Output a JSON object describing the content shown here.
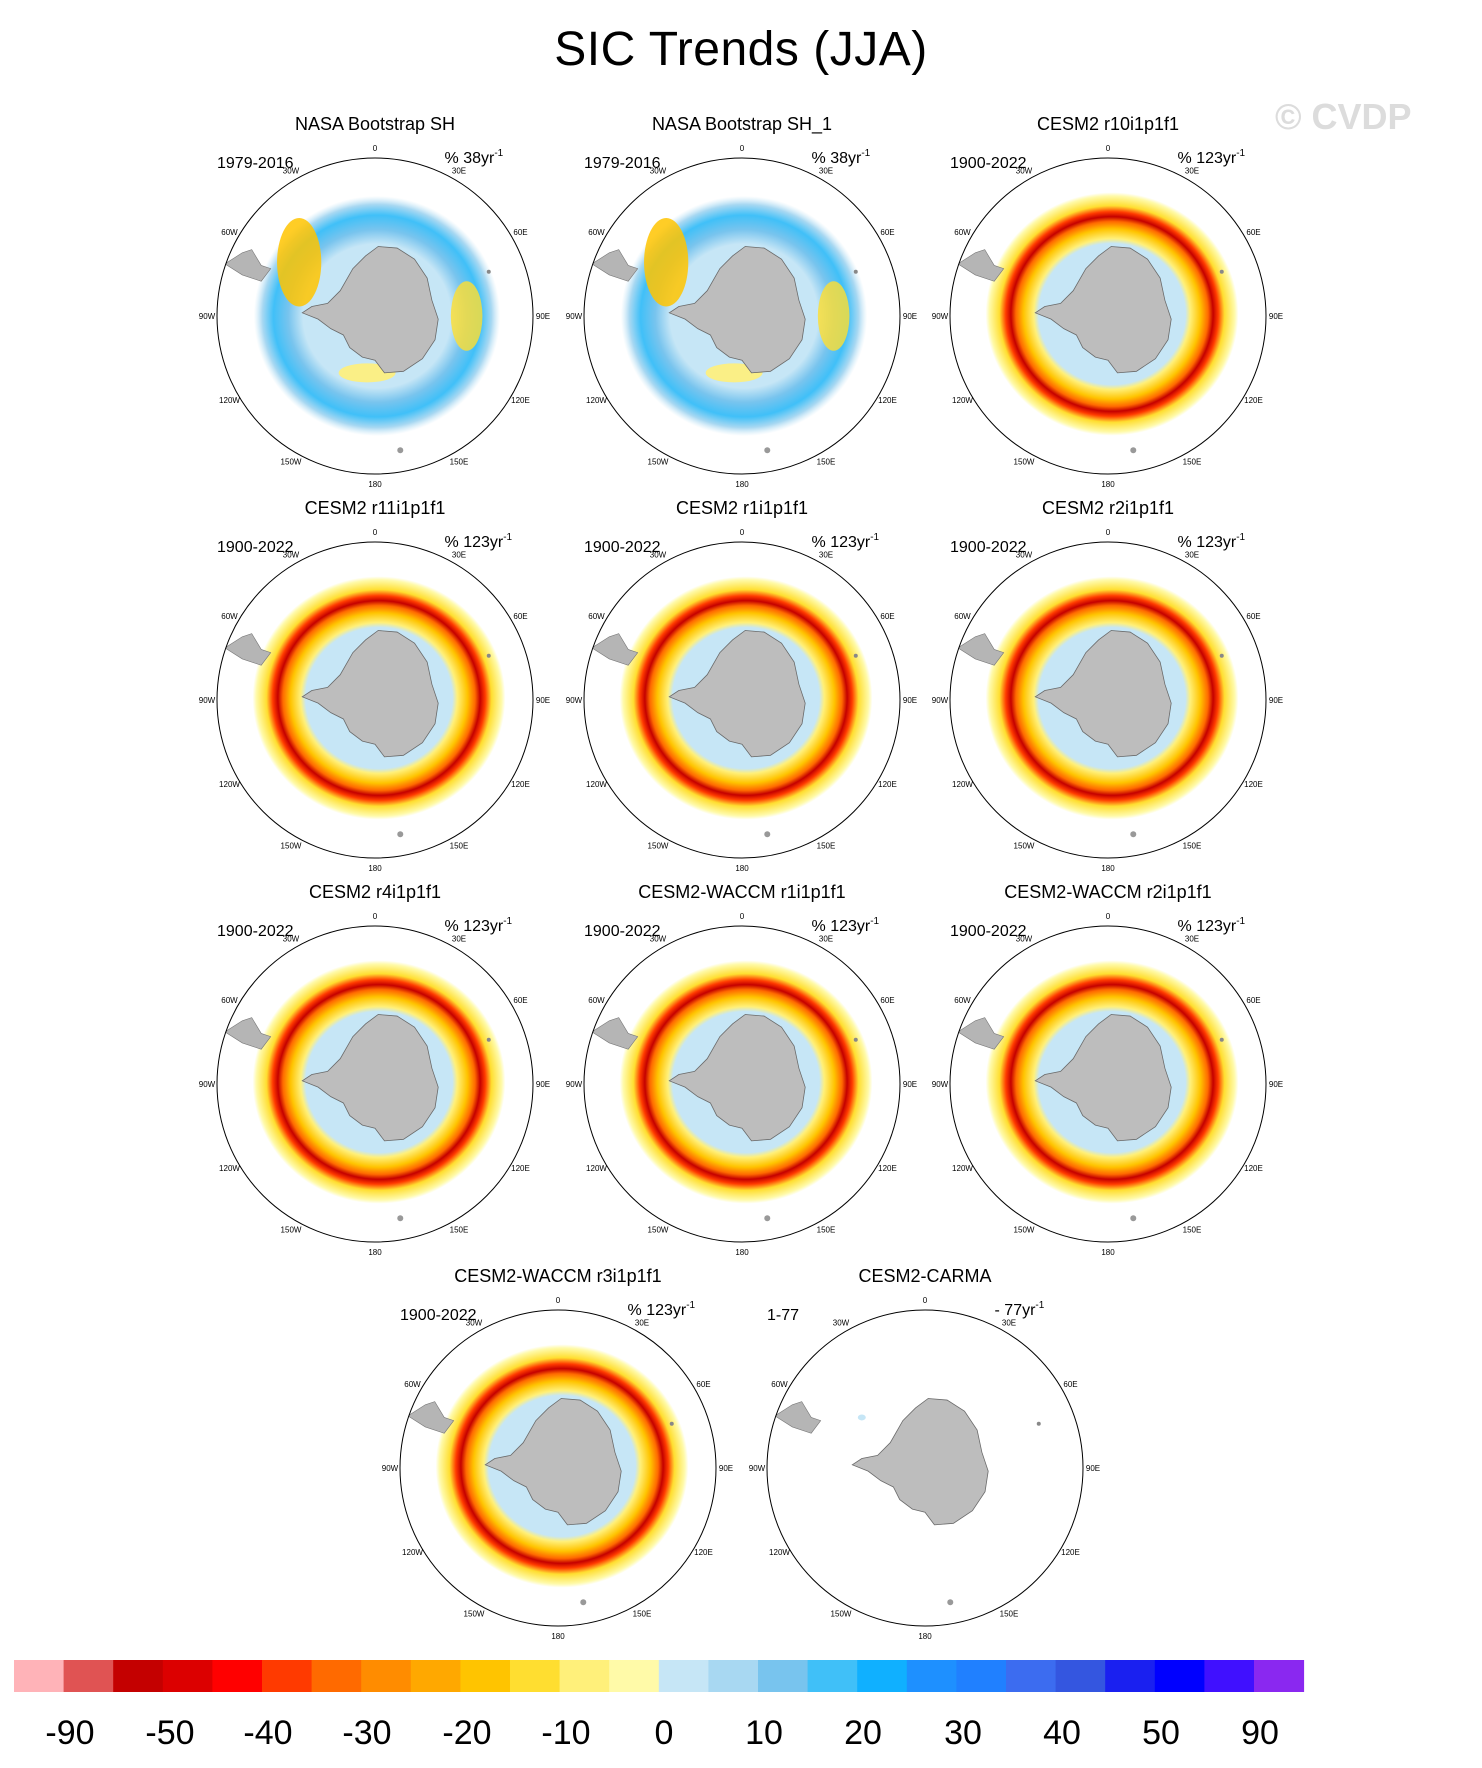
{
  "title": "SIC Trends (JJA)",
  "watermark": "© CVDP",
  "lon_labels": [
    "0",
    "30E",
    "60E",
    "90E",
    "120E",
    "150E",
    "180",
    "150W",
    "120W",
    "90W",
    "60W",
    "30W"
  ],
  "panels": [
    {
      "title": "NASA Bootstrap SH",
      "period": "1979-2016",
      "units": "% 38yr",
      "exp": "-1",
      "style": "obs"
    },
    {
      "title": "NASA Bootstrap SH_1",
      "period": "1979-2016",
      "units": "% 38yr",
      "exp": "-1",
      "style": "obs"
    },
    {
      "title": "CESM2 r10i1p1f1",
      "period": "1900-2022",
      "units": "% 123yr",
      "exp": "-1",
      "style": "model"
    },
    {
      "title": "CESM2 r11i1p1f1",
      "period": "1900-2022",
      "units": "% 123yr",
      "exp": "-1",
      "style": "model"
    },
    {
      "title": "CESM2 r1i1p1f1",
      "period": "1900-2022",
      "units": "% 123yr",
      "exp": "-1",
      "style": "model"
    },
    {
      "title": "CESM2 r2i1p1f1",
      "period": "1900-2022",
      "units": "% 123yr",
      "exp": "-1",
      "style": "model"
    },
    {
      "title": "CESM2 r4i1p1f1",
      "period": "1900-2022",
      "units": "% 123yr",
      "exp": "-1",
      "style": "model"
    },
    {
      "title": "CESM2-WACCM r1i1p1f1",
      "period": "1900-2022",
      "units": "% 123yr",
      "exp": "-1",
      "style": "model"
    },
    {
      "title": "CESM2-WACCM r2i1p1f1",
      "period": "1900-2022",
      "units": "% 123yr",
      "exp": "-1",
      "style": "model"
    },
    {
      "title": "CESM2-WACCM r3i1p1f1",
      "period": "1900-2022",
      "units": "% 123yr",
      "exp": "-1",
      "style": "model"
    },
    {
      "title": "CESM2-CARMA",
      "period": "1-77",
      "units": "- 77yr",
      "exp": "-1",
      "style": "empty"
    }
  ],
  "colorbar": {
    "colors": [
      "#ffb3b8",
      "#e05353",
      "#c40000",
      "#dc0000",
      "#ff0000",
      "#ff3a00",
      "#ff6a00",
      "#ff8c00",
      "#ffa800",
      "#ffc400",
      "#ffde30",
      "#fff07a",
      "#fffaa8",
      "#c6e6f6",
      "#a8d8f2",
      "#78c4ee",
      "#40c0f8",
      "#10b0ff",
      "#1e90ff",
      "#2080ff",
      "#3c6cf0",
      "#3456e0",
      "#1a20f0",
      "#0000ff",
      "#4010ff",
      "#8a28f0"
    ],
    "labels": [
      "-90",
      "-50",
      "-40",
      "-30",
      "-20",
      "-10",
      "0",
      "10",
      "20",
      "30",
      "40",
      "50",
      "90"
    ]
  }
}
